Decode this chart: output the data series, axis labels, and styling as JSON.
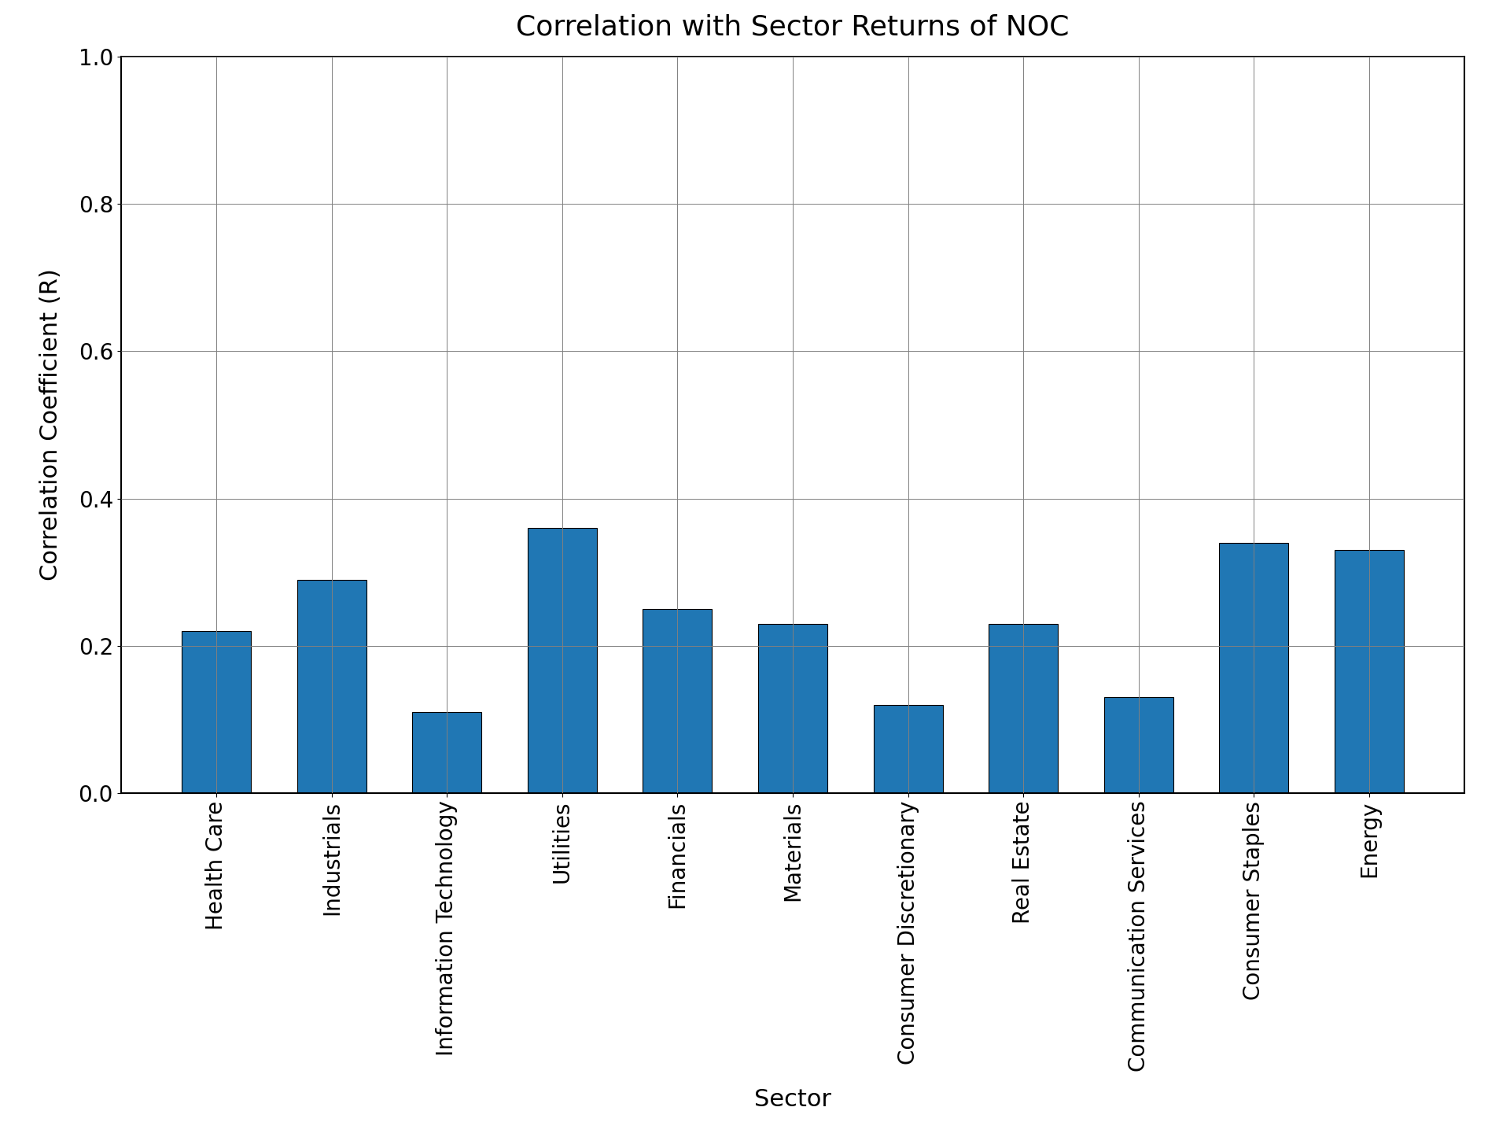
{
  "title": "Correlation with Sector Returns of NOC",
  "xlabel": "Sector",
  "ylabel": "Correlation Coefficient (R)",
  "categories": [
    "Health Care",
    "Industrials",
    "Information Technology",
    "Utilities",
    "Financials",
    "Materials",
    "Consumer Discretionary",
    "Real Estate",
    "Communication Services",
    "Consumer Staples",
    "Energy"
  ],
  "values": [
    0.22,
    0.29,
    0.11,
    0.36,
    0.25,
    0.23,
    0.12,
    0.23,
    0.13,
    0.34,
    0.33
  ],
  "bar_color": "#2077b4",
  "ylim": [
    0.0,
    1.0
  ],
  "yticks": [
    0.0,
    0.2,
    0.4,
    0.6,
    0.8,
    1.0
  ],
  "title_fontsize": 26,
  "label_fontsize": 22,
  "tick_fontsize": 20
}
